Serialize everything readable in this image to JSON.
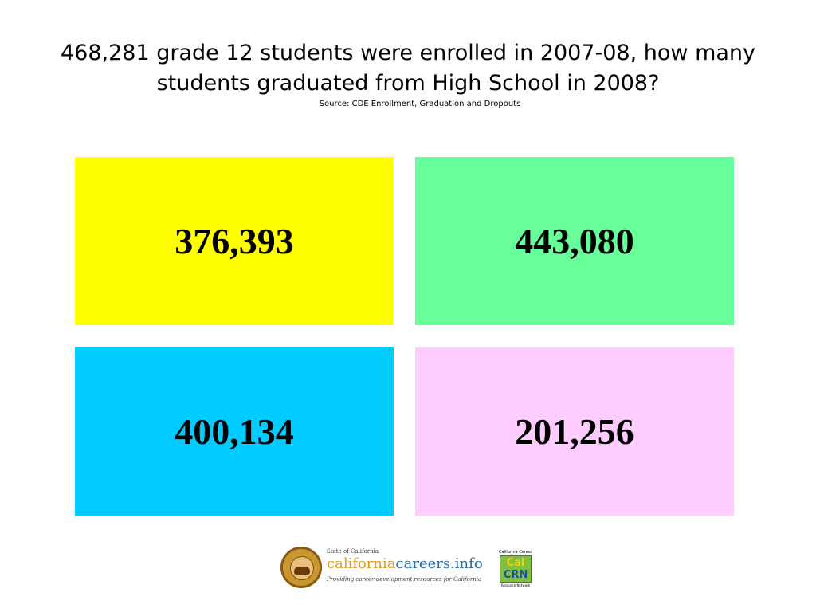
{
  "question": {
    "text": "468,281 grade 12 students were enrolled in 2007-08, how many students graduated from High School in 2008?",
    "source": "Source: CDE Enrollment, Graduation and Dropouts"
  },
  "answers": [
    {
      "value": "376,393",
      "color": "#ffff00"
    },
    {
      "value": "443,080",
      "color": "#66ff99"
    },
    {
      "value": "400,134",
      "color": "#00ccff"
    },
    {
      "value": "201,256",
      "color": "#ffccff"
    }
  ],
  "footer": {
    "state_label": "State of California",
    "logo_part1": "california",
    "logo_part2": "careers.info",
    "tagline": "Providing career development resources for California",
    "calcrn_top": "California Career",
    "calcrn_line1": "Cal",
    "calcrn_line2": "CRN",
    "calcrn_bottom": "Resource Network"
  }
}
